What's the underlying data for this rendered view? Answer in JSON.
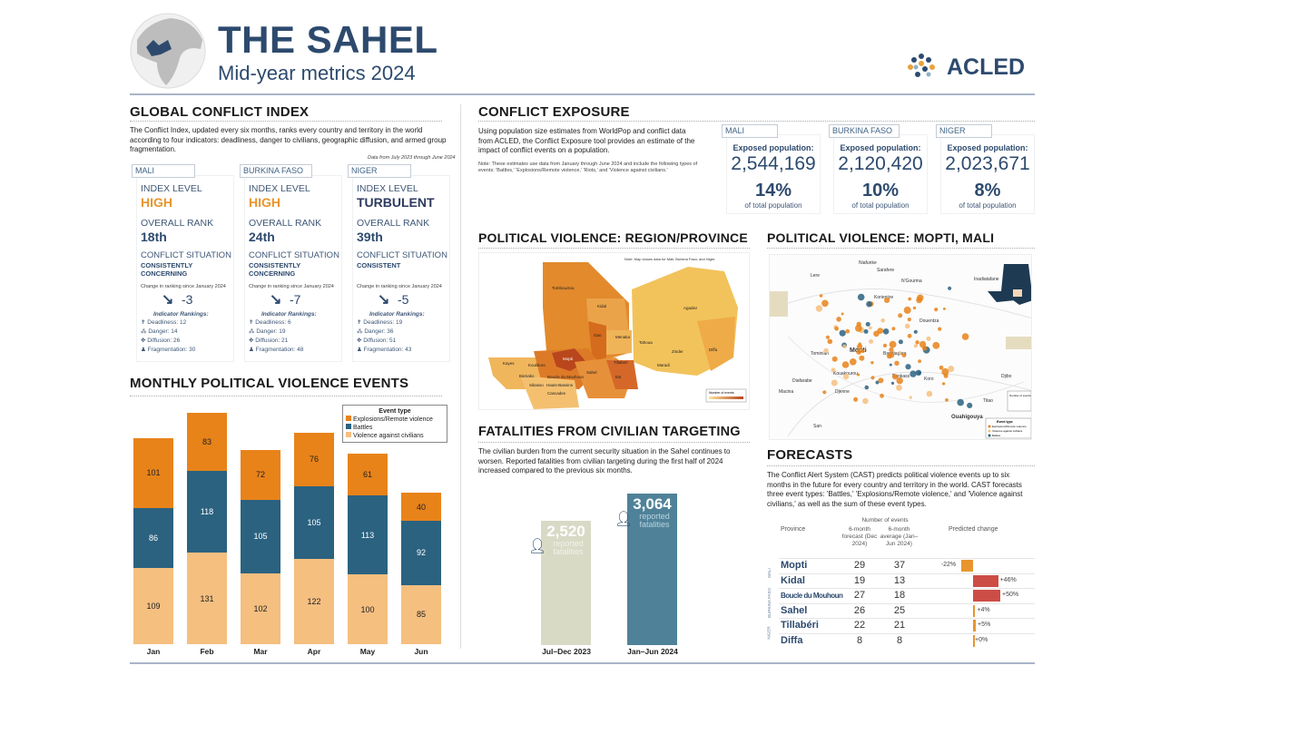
{
  "header": {
    "title": "THE SAHEL",
    "subtitle": "Mid-year metrics 2024",
    "logo": "ACLED"
  },
  "gci": {
    "title": "GLOBAL CONFLICT INDEX",
    "description": "The Conflict Index, updated every six months, ranks every country and territory in the world according to four indicators: deadliness, danger to civilians, geographic diffusion, and armed group fragmentation.",
    "data_note": "Data from July 2023 through June 2024",
    "labels": {
      "index_level": "INDEX LEVEL",
      "overall_rank": "OVERALL RANK",
      "conflict_situation": "CONFLICT SITUATION",
      "change": "Change in ranking since January 2024",
      "indicator_rankings": "Indicator Rankings:"
    },
    "countries": [
      {
        "name": "MALI",
        "level": "HIGH",
        "level_color": "#e8952e",
        "rank": "18th",
        "situation": "CONSISTENTLY CONCERNING",
        "change": "-3",
        "deadliness": "Deadliness: 12",
        "danger": "Danger: 14",
        "diffusion": "Diffusion: 26",
        "fragmentation": "Fragmentation: 30"
      },
      {
        "name": "BURKINA FASO",
        "level": "HIGH",
        "level_color": "#e8952e",
        "rank": "24th",
        "situation": "CONSISTENTLY CONCERNING",
        "change": "-7",
        "deadliness": "Deadliness: 6",
        "danger": "Danger: 19",
        "diffusion": "Diffusion: 21",
        "fragmentation": "Fragmentation: 48"
      },
      {
        "name": "NIGER",
        "level": "TURBULENT",
        "level_color": "#2d3a5e",
        "rank": "39th",
        "situation": "CONSISTENT",
        "change": "-5",
        "deadliness": "Deadliness: 19",
        "danger": "Danger: 36",
        "diffusion": "Diffusion: 51",
        "fragmentation": "Fragmentation: 43"
      }
    ]
  },
  "exposure": {
    "title": "CONFLICT EXPOSURE",
    "description": "Using population size estimates from WorldPop and conflict data from ACLED, the Conflict Exposure tool provides an estimate of the impact of conflict events on a population.",
    "note": "Note: These estimates use data from January through June 2024 and include the following types of events: 'Battles,' 'Explosions/Remote violence,' 'Riots,' and 'Violence against civilians.'",
    "exposed_label": "Exposed population:",
    "pct_label": "of total population",
    "countries": [
      {
        "name": "MALI",
        "population": "2,544,169",
        "pct": "14%"
      },
      {
        "name": "BURKINA FASO",
        "population": "2,120,420",
        "pct": "10%"
      },
      {
        "name": "NIGER",
        "population": "2,023,671",
        "pct": "8%"
      }
    ]
  },
  "map_region": {
    "title": "POLITICAL VIOLENCE: REGION/PROVINCE",
    "note": "Note: Map shows data for Mali, Burkina Faso, and Niger.",
    "legend_title": "Number of events",
    "places": [
      "Tombouctou",
      "Kidal",
      "Gao",
      "Menaka",
      "Mopti",
      "Tahoua",
      "Agadez",
      "Zinder",
      "Diffa",
      "Maradi",
      "Kayes",
      "Koulikoro",
      "Bamako",
      "Segou",
      "Tillaberi",
      "Sahel",
      "Est",
      "Boucle du Mouhoun",
      "Sikasso",
      "Hauts-Bassins",
      "Cascades",
      "Nord"
    ]
  },
  "map_mopti": {
    "title": "POLITICAL VIOLENCE: MOPTI, MALI",
    "places": [
      "Niafunke",
      "Sarafere",
      "Lere",
      "N'Gourma",
      "Korientze",
      "Douentza",
      "Mopti",
      "Bandiagara",
      "Djenne",
      "Bankass",
      "Koro",
      "Ouahigouya",
      "Djibo",
      "Titao",
      "San",
      "Tominian",
      "Kouakourou",
      "Macina",
      "Diafarabe",
      "Nara",
      "Tinzaouaten"
    ],
    "legend_title": "Event type",
    "legend": [
      "Explosions/Remote violence",
      "Violence against civilians",
      "Battles"
    ],
    "size_legend": "Number of events"
  },
  "monthly": {
    "title": "MONTHLY POLITICAL VIOLENCE EVENTS"
  },
  "fatal": {
    "title": "FATALITIES FROM CIVILIAN TARGETING",
    "description": "The civilian burden from the current security situation in the Sahel continues to worsen. Reported fatalities from civilian targeting during the first half of 2024 increased compared to the previous six months.",
    "unit": "reported fatalities"
  },
  "forecasts": {
    "title": "FORECASTS",
    "description": "The Conflict Alert System (CAST) predicts political violence events up to six months in the future for every country and territory in the world. CAST forecasts three event types: 'Battles,' 'Explosions/Remote violence,' and 'Violence against civilians,' as well as the sum of these event types.",
    "headers": {
      "province": "Province",
      "group": "Number of events",
      "forecast": "6-month forecast (Dec 2024)",
      "average": "6-month average (Jan–Jun 2024)",
      "change": "Predicted change"
    },
    "country_labels": [
      "MALI",
      "BURKINA FASO",
      "NIGER"
    ]
  },
  "chart_data": [
    {
      "type": "bar",
      "stacked": true,
      "title": "MONTHLY POLITICAL VIOLENCE EVENTS",
      "categories": [
        "Jan",
        "Feb",
        "Mar",
        "Apr",
        "May",
        "Jun"
      ],
      "legend_title": "Event type",
      "legend_position": "top-right",
      "series": [
        {
          "name": "Violence against civilians",
          "color": "#f5bf80",
          "values": [
            109,
            131,
            102,
            122,
            100,
            85
          ]
        },
        {
          "name": "Battles",
          "color": "#2b6280",
          "values": [
            86,
            118,
            105,
            105,
            113,
            92
          ]
        },
        {
          "name": "Explosions/Remote violence",
          "color": "#e8831a",
          "values": [
            101,
            83,
            72,
            76,
            61,
            40
          ]
        }
      ]
    },
    {
      "type": "bar",
      "title": "FATALITIES FROM CIVILIAN TARGETING",
      "categories": [
        "Jul–Dec 2023",
        "Jan–Jun 2024"
      ],
      "values": [
        2520,
        3064
      ],
      "labels": [
        "2,520",
        "3,064"
      ],
      "colors": [
        "#d9dac6",
        "#4f8298"
      ]
    },
    {
      "type": "table",
      "title": "FORECASTS",
      "rows": [
        {
          "country": "MALI",
          "province": "Mopti",
          "forecast": 29,
          "average": 37,
          "change": -22,
          "change_label": "-22%"
        },
        {
          "country": "MALI",
          "province": "Kidal",
          "forecast": 19,
          "average": 13,
          "change": 46,
          "change_label": "+46%"
        },
        {
          "country": "BURKINA FASO",
          "province": "Boucle du Mouhoun",
          "forecast": 27,
          "average": 18,
          "change": 50,
          "change_label": "+50%"
        },
        {
          "country": "BURKINA FASO",
          "province": "Sahel",
          "forecast": 26,
          "average": 25,
          "change": 4,
          "change_label": "+4%"
        },
        {
          "country": "NIGER",
          "province": "Tillabéri",
          "forecast": 22,
          "average": 21,
          "change": 5,
          "change_label": "+5%"
        },
        {
          "country": "NIGER",
          "province": "Diffa",
          "forecast": 8,
          "average": 8,
          "change": 0,
          "change_label": "+0%"
        }
      ]
    }
  ]
}
